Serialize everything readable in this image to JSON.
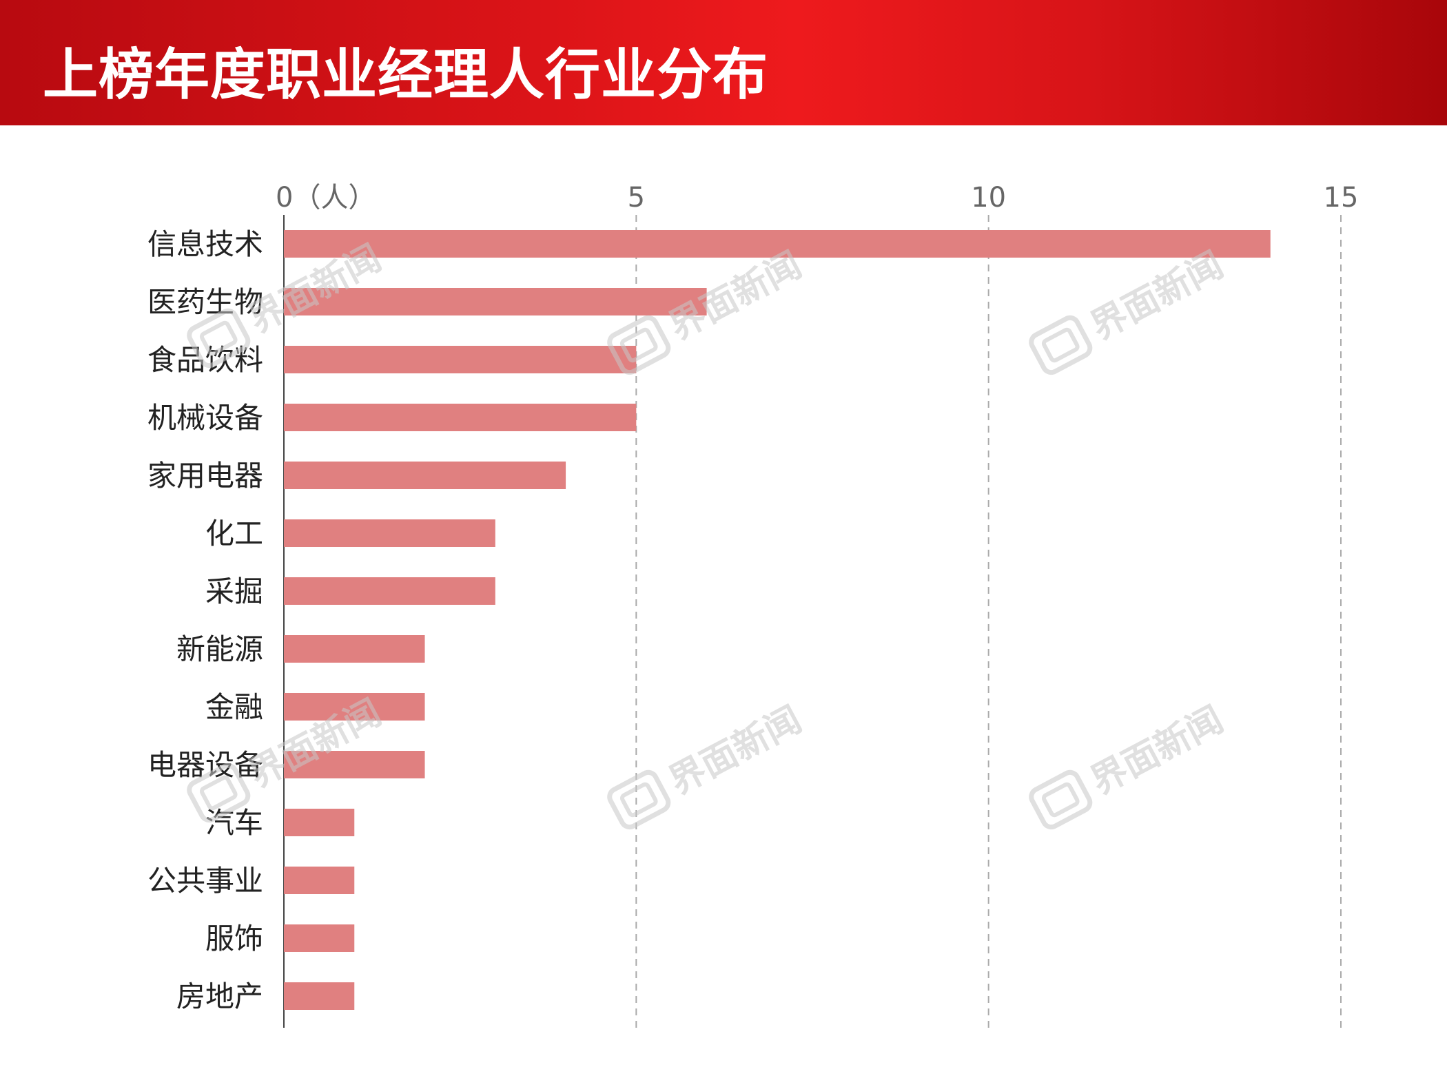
{
  "header": {
    "title": "上榜年度职业经理人行业分布"
  },
  "watermark": {
    "text": "界面新闻",
    "icon": "jiemian-logo-icon"
  },
  "colors": {
    "bar": "#e08080",
    "header": "#d81418",
    "grid": "#aaaaaa"
  },
  "chart_data": {
    "type": "bar",
    "orientation": "horizontal",
    "title": "上榜年度职业经理人行业分布",
    "categories": [
      "信息技术",
      "医药生物",
      "食品饮料",
      "机械设备",
      "家用电器",
      "化工",
      "采掘",
      "新能源",
      "金融",
      "电器设备",
      "汽车",
      "公共事业",
      "服饰",
      "房地产"
    ],
    "values": [
      14,
      6,
      5,
      5,
      4,
      3,
      3,
      2,
      2,
      2,
      1,
      1,
      1,
      1
    ],
    "xlim": [
      0,
      15
    ],
    "xticks": [
      0,
      5,
      10,
      15
    ],
    "xtick_labels": [
      "0（人）",
      "5",
      "10",
      "15"
    ],
    "xlabel": "",
    "ylabel": "",
    "grid": true,
    "axis_position": "top"
  }
}
